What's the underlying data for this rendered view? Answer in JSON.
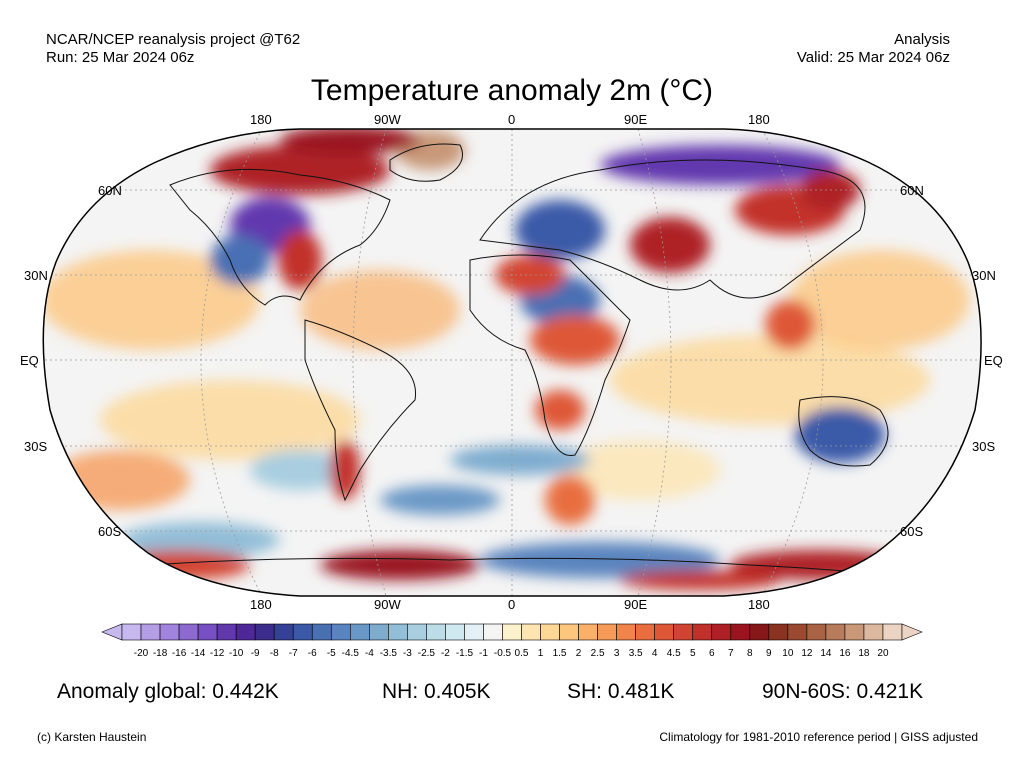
{
  "header": {
    "source": "NCAR/NCEP reanalysis project @T62",
    "run": "Run: 25 Mar 2024 06z",
    "type": "Analysis",
    "valid": "Valid: 25 Mar 2024 06z"
  },
  "title": "Temperature anomaly 2m (°C)",
  "map": {
    "projection": "Robinson",
    "lon_labels": [
      "180",
      "90W",
      "0",
      "90E",
      "180"
    ],
    "lat_labels": [
      "60N",
      "30N",
      "EQ",
      "30S",
      "60S"
    ],
    "background": "#f4f4f4"
  },
  "colorbar": {
    "labels": [
      "-20",
      "-18",
      "-16",
      "-14",
      "-12",
      "-10",
      "-9",
      "-8",
      "-7",
      "-6",
      "-5",
      "-4.5",
      "-4",
      "-3.5",
      "-3",
      "-2.5",
      "-2",
      "-1.5",
      "-1",
      "-0.5",
      "0.5",
      "1",
      "1.5",
      "2",
      "2.5",
      "3",
      "3.5",
      "4",
      "4.5",
      "5",
      "6",
      "7",
      "8",
      "9",
      "10",
      "12",
      "14",
      "16",
      "18",
      "20"
    ],
    "colors": [
      "#c8b8f0",
      "#b49ee8",
      "#a084de",
      "#8c6ad2",
      "#7650c2",
      "#6238ae",
      "#4e2898",
      "#3c2c8c",
      "#34409a",
      "#3a5aa8",
      "#4a70b4",
      "#5a84be",
      "#6a98c6",
      "#7eaccf",
      "#92bed8",
      "#a8cee0",
      "#bcdce8",
      "#d0e8f0",
      "#e4f0f6",
      "#f4f4f4",
      "#fbf1cc",
      "#fce5b0",
      "#fdd796",
      "#fcc57e",
      "#fab068",
      "#f69a58",
      "#f0844a",
      "#e86e40",
      "#de5838",
      "#d24432",
      "#c2302c",
      "#ae2026",
      "#9a1420",
      "#86181a",
      "#8c3220",
      "#9a4a30",
      "#a86244",
      "#b87c5c",
      "#c89878",
      "#dcb8a0",
      "#ecd4c4"
    ]
  },
  "stats": {
    "global": "Anomaly global: 0.442K",
    "nh": "NH: 0.405K",
    "sh": "SH: 0.481K",
    "arctic": "90N-60S: 0.421K"
  },
  "footer": {
    "credit": "(c) Karsten Haustein",
    "note": "Climatology for 1981-2010 reference period | GISS adjusted"
  }
}
